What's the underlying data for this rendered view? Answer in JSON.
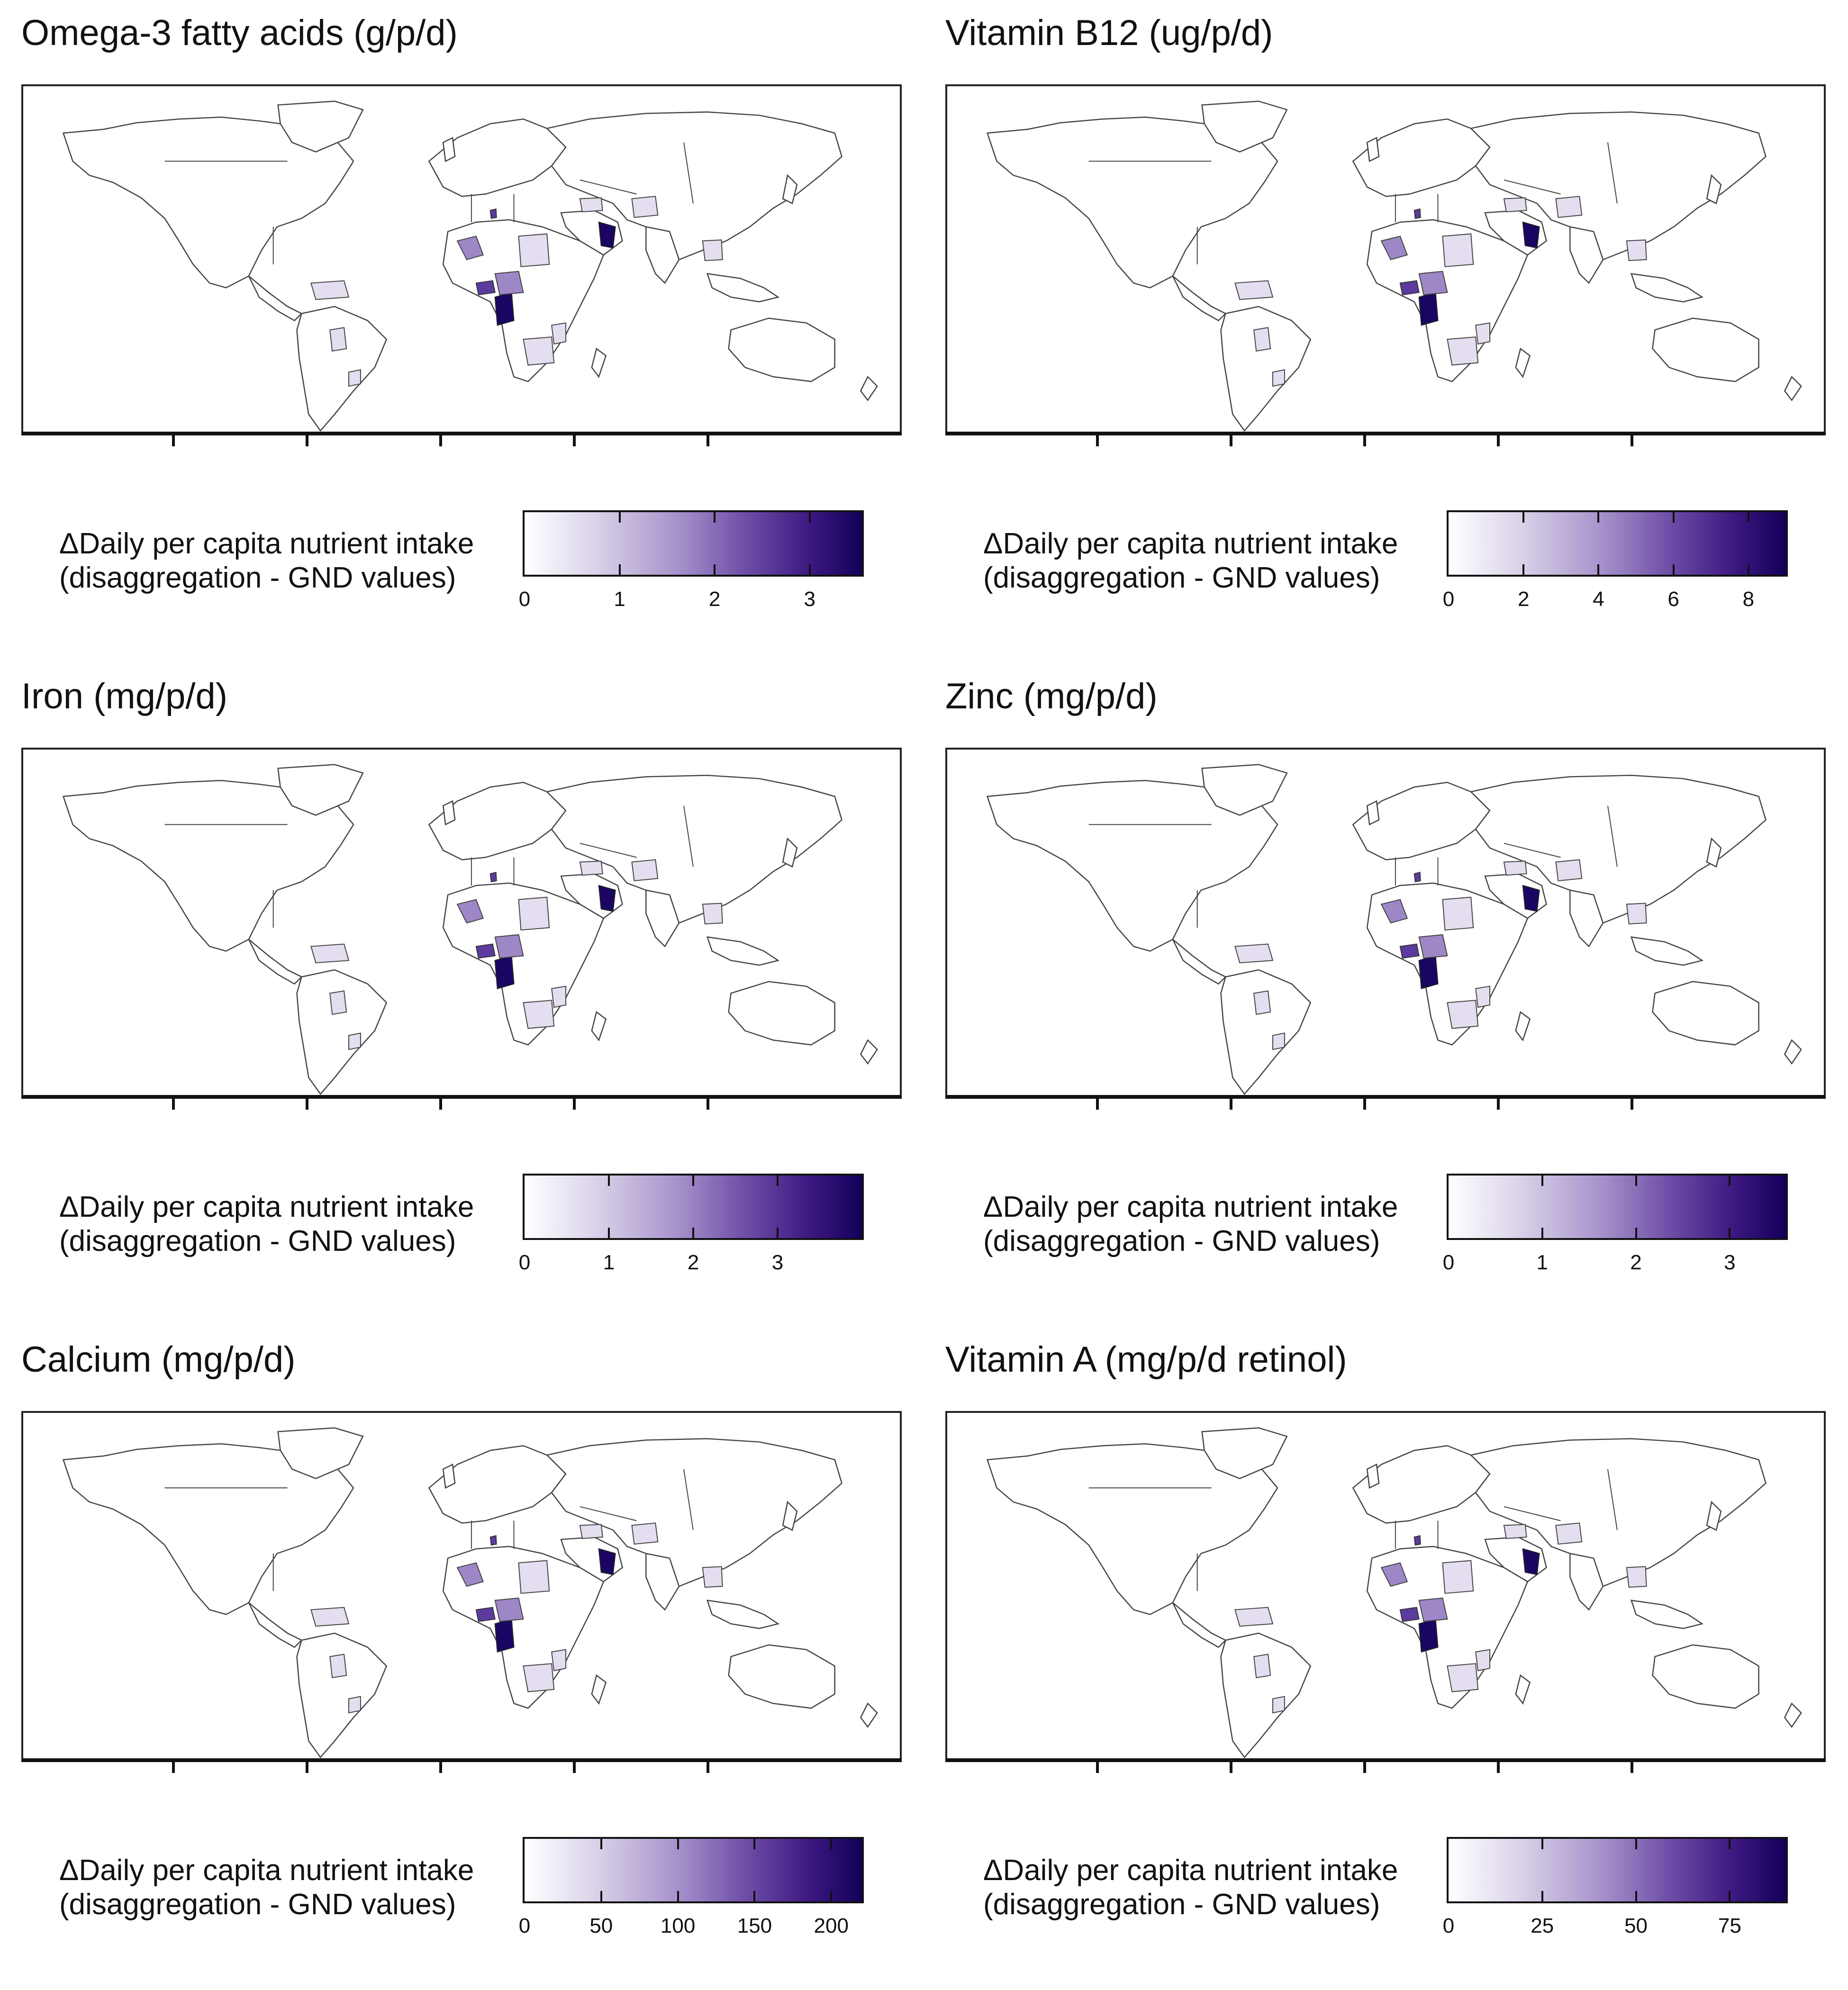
{
  "legend_label_line1": "ΔDaily per capita nutrient intake",
  "legend_label_line2": "(disaggregation - GND values)",
  "colors": {
    "scale_low": "#ffffff",
    "scale_mid": "#9d87c6",
    "scale_high": "#13005a",
    "border": "#444444"
  },
  "panels": [
    {
      "title": "Omega-3 fatty acids (g/p/d)",
      "scale_max": 3.55,
      "ticks": [
        0,
        1,
        2,
        3
      ],
      "tick_labels": [
        "0",
        "1",
        "2",
        "3"
      ]
    },
    {
      "title": "Vitamin B12 (ug/p/d)",
      "scale_max": 9,
      "ticks": [
        0,
        2,
        4,
        6,
        8
      ],
      "tick_labels": [
        "0",
        "2",
        "4",
        "6",
        "8"
      ]
    },
    {
      "title": "Iron (mg/p/d)",
      "scale_max": 4,
      "ticks": [
        0,
        1,
        2,
        3
      ],
      "tick_labels": [
        "0",
        "1",
        "2",
        "3"
      ]
    },
    {
      "title": "Zinc (mg/p/d)",
      "scale_max": 3.6,
      "ticks": [
        0,
        1,
        2,
        3
      ],
      "tick_labels": [
        "0",
        "1",
        "2",
        "3"
      ]
    },
    {
      "title": "Calcium (mg/p/d)",
      "scale_max": 220,
      "ticks": [
        0,
        50,
        100,
        150,
        200
      ],
      "tick_labels": [
        "0",
        "50",
        "100",
        "150",
        "200"
      ]
    },
    {
      "title": "Vitamin A (mg/p/d retinol)",
      "scale_max": 90,
      "ticks": [
        0,
        25,
        50,
        75
      ],
      "tick_labels": [
        "0",
        "25",
        "50",
        "75"
      ]
    }
  ]
}
